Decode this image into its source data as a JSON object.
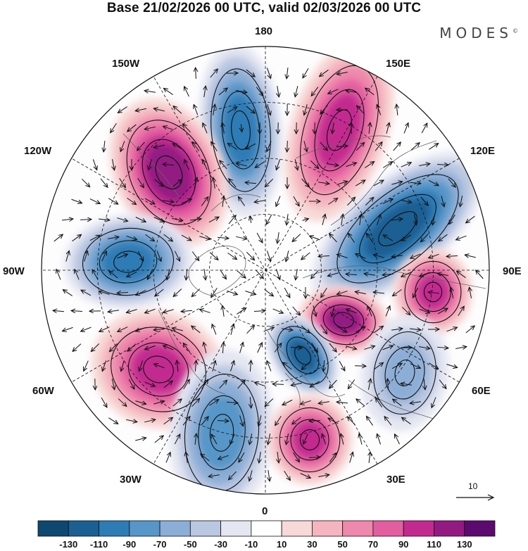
{
  "title": "Base 21/02/2026 00 UTC, valid 02/03/2026 00 UTC",
  "brand": "MODES",
  "brand_mark": "©",
  "longitude_labels": [
    {
      "id": "180",
      "text": "180"
    },
    {
      "id": "150e",
      "text": "150E"
    },
    {
      "id": "120e",
      "text": "120E"
    },
    {
      "id": "90e",
      "text": "90E"
    },
    {
      "id": "60e",
      "text": "60E"
    },
    {
      "id": "30e",
      "text": "30E"
    },
    {
      "id": "0",
      "text": "0"
    },
    {
      "id": "30w",
      "text": "30W"
    },
    {
      "id": "60w",
      "text": "60W"
    },
    {
      "id": "90w",
      "text": "90W"
    },
    {
      "id": "120w",
      "text": "120W"
    },
    {
      "id": "150w",
      "text": "150W"
    }
  ],
  "reference_vector_label": "10",
  "colorbar": {
    "colors": [
      "#0e4870",
      "#1b5f93",
      "#2e7cb6",
      "#5796c8",
      "#8caed6",
      "#bac7e1",
      "#e4e6f1",
      "#ffffff",
      "#f7d9d7",
      "#f4b5c0",
      "#ee88ac",
      "#e35ea0",
      "#c32a90",
      "#931a82",
      "#5c0a70"
    ],
    "labels": [
      "-130",
      "-110",
      "-90",
      "-70",
      "-50",
      "-30",
      "-10",
      "10",
      "30",
      "50",
      "70",
      "90",
      "110",
      "130"
    ]
  },
  "anomaly_features": [
    {
      "name": "negative-anomaly-north-pacific",
      "value": -90
    },
    {
      "name": "positive-anomaly-bering-siberia",
      "value": 90
    },
    {
      "name": "positive-anomaly-alaska",
      "value": 110
    },
    {
      "name": "negative-anomaly-east-siberia",
      "value": -110
    },
    {
      "name": "negative-anomaly-canada",
      "value": -90
    },
    {
      "name": "positive-anomaly-central-siberia",
      "value": 90
    },
    {
      "name": "positive-anomaly-kara-sea",
      "value": 110
    },
    {
      "name": "negative-anomaly-scandinavia",
      "value": -110
    },
    {
      "name": "positive-anomaly-labrador",
      "value": 90
    },
    {
      "name": "negative-anomaly-west-siberia",
      "value": -50
    },
    {
      "name": "negative-anomaly-north-atlantic",
      "value": -70
    },
    {
      "name": "positive-anomaly-europe",
      "value": 90
    }
  ]
}
